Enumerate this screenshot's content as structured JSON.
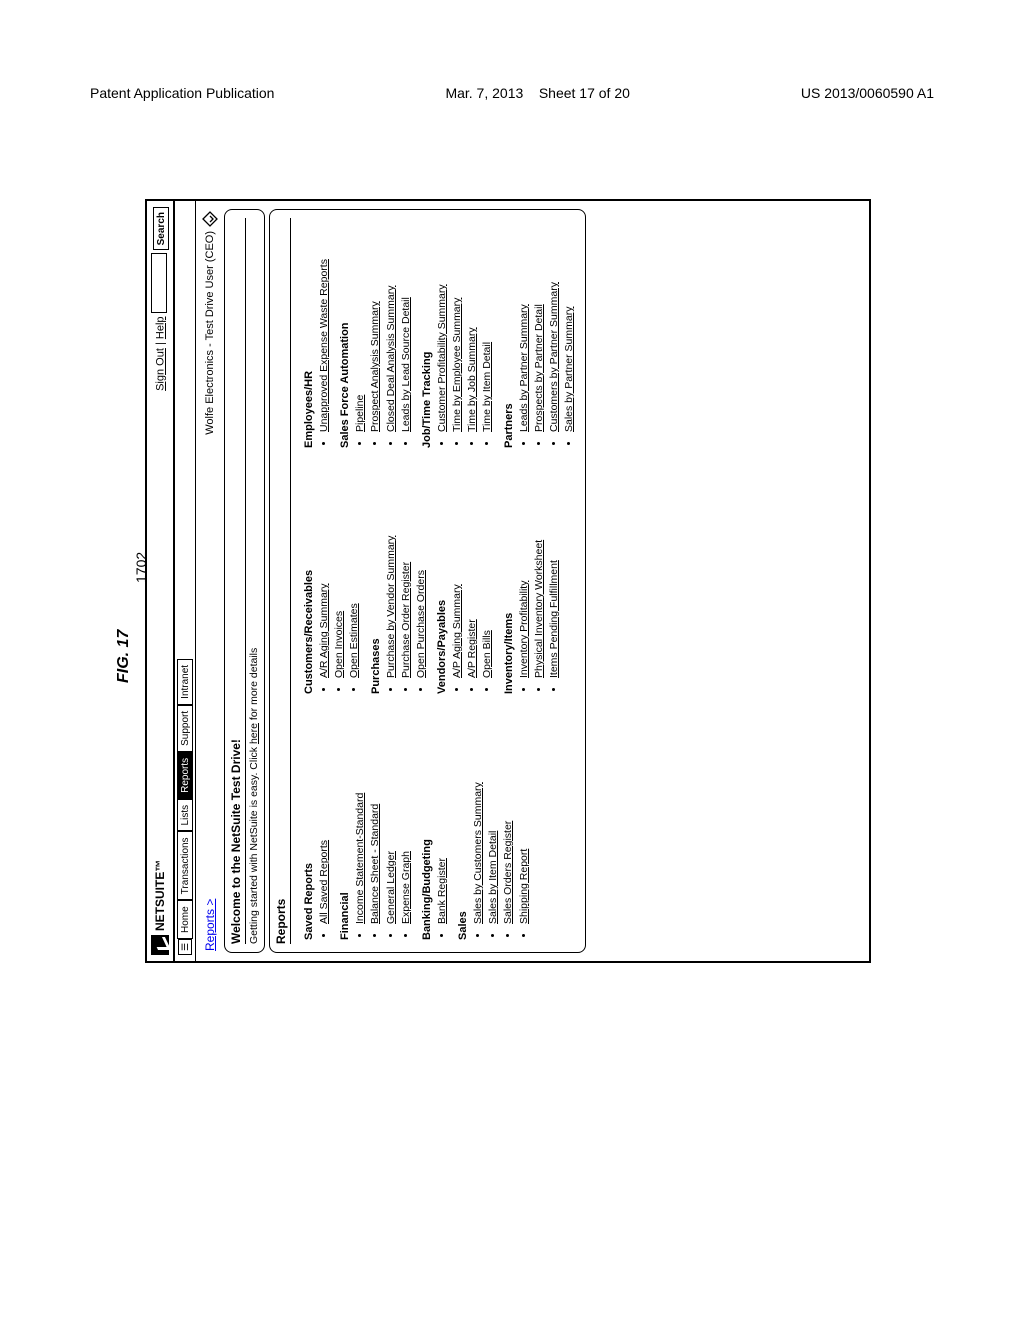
{
  "page_header": {
    "left": "Patent Application Publication",
    "date": "Mar. 7, 2013",
    "sheet": "Sheet 17 of 20",
    "pubno": "US 2013/0060590 A1"
  },
  "figure": {
    "label": "FIG. 17",
    "ref": "1702"
  },
  "brand": "NETSUITE™",
  "top_links": {
    "signout": "Sign Out",
    "help": "Help",
    "search_btn": "Search"
  },
  "nav": {
    "home": "Home",
    "transactions": "Transactions",
    "lists": "Lists",
    "reports": "Reports",
    "support": "Support",
    "intranet": "Intranet"
  },
  "breadcrumb": "Reports >",
  "context_user": "Wolfe Electronics - Test Drive User (CEO)",
  "welcome": {
    "title": "Welcome to the NetSuite Test Drive!",
    "subtitle_prefix": "Getting started with NetSuite is easy. Click ",
    "subtitle_link": "here",
    "subtitle_suffix": " for more details"
  },
  "reports_panel_title": "Reports",
  "columns": {
    "col1": [
      {
        "title": "Saved Reports",
        "links": [
          "All Saved Reports"
        ]
      },
      {
        "title": "Financial",
        "links": [
          "Income Statement-Standard",
          "Balance Sheet - Standard",
          "General Ledger",
          "Expense Graph"
        ]
      },
      {
        "title": "Banking/Budgeting",
        "links": [
          "Bank Register"
        ]
      },
      {
        "title": "Sales",
        "links": [
          "Sales by Customers Summary",
          "Sales by Item Detail",
          "Sales Orders Register",
          "Shipping Report"
        ]
      }
    ],
    "col2": [
      {
        "title": "Customers/Receivables",
        "links": [
          "A/R Aging Summary",
          "Open Invoices",
          "Open Estimates"
        ]
      },
      {
        "title": "Purchases",
        "links": [
          "Purchase by Vendor Summary",
          "Purchase Order Register",
          "Open Purchase Orders"
        ]
      },
      {
        "title": "Vendors/Payables",
        "links": [
          "A/P Aging Summary",
          "A/P Register",
          "Open Bills"
        ]
      },
      {
        "title": "Inventory/Items",
        "links": [
          "Inventory Profitability",
          "Physical Inventory Worksheet",
          "Items Pending Fulfillment"
        ]
      }
    ],
    "col3": [
      {
        "title": "Employees/HR",
        "links": [
          "Unapproved Expense Waste Reports"
        ]
      },
      {
        "title": "Sales Force Automation",
        "links": [
          "Pipeline",
          "Prospect Analysis Summary",
          "Closed Deal Analysis Summary",
          "Leads by Lead Source Detail"
        ]
      },
      {
        "title": "Job/Time Tracking",
        "links": [
          "Customer Profitability Summary",
          "Time by Employee Summary",
          "Time by Job Summary",
          "Time by Item Detail"
        ]
      },
      {
        "title": "Partners",
        "links": [
          "Leads by Partner Summary",
          "Prospects by Partner Detail",
          "Customers by Partner Summary",
          "Sales by Partner Summary"
        ]
      }
    ]
  }
}
